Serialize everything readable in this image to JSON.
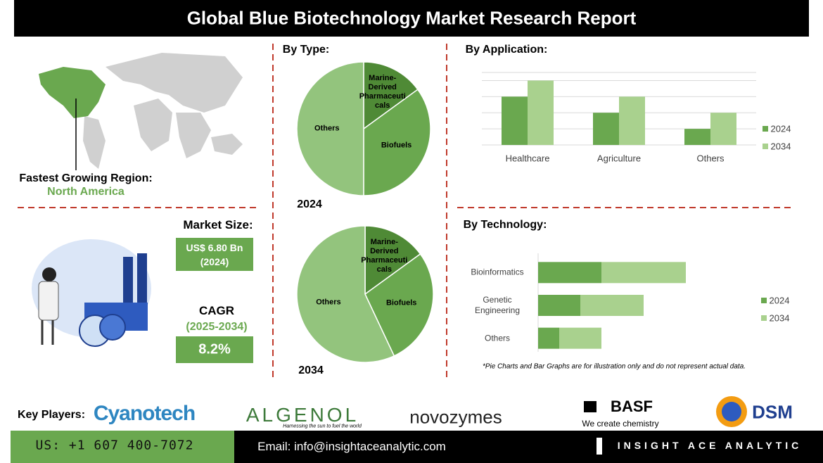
{
  "header": {
    "title": "Global Blue Biotechnology Market Research Report"
  },
  "region": {
    "label": "Fastest Growing Region:",
    "value": "North America"
  },
  "market_size": {
    "label": "Market Size:",
    "value": "US$ 6.80 Bn",
    "year": "(2024)"
  },
  "cagr": {
    "label": "CAGR",
    "period": "(2025-2034)",
    "value": "8.2%"
  },
  "chart_data": [
    {
      "type": "pie",
      "title": "By Type:",
      "label": "2024",
      "categories": [
        "Marine-Derived Pharmaceuticals",
        "Biofuels",
        "Others"
      ],
      "values": [
        15,
        35,
        50
      ],
      "colors": [
        "#4f8a36",
        "#6aa84f",
        "#93c47d"
      ]
    },
    {
      "type": "pie",
      "label": "2034",
      "categories": [
        "Marine-Derived Pharmaceuticals",
        "Biofuels",
        "Others"
      ],
      "values": [
        15,
        28,
        57
      ],
      "colors": [
        "#4f8a36",
        "#6aa84f",
        "#93c47d"
      ]
    },
    {
      "type": "bar",
      "title": "By Application:",
      "categories": [
        "Healthcare",
        "Agriculture",
        "Others"
      ],
      "series": [
        {
          "name": "2024",
          "color": "#6aa84f",
          "values": [
            3,
            2,
            1
          ]
        },
        {
          "name": "2034",
          "color": "#a9d18e",
          "values": [
            4,
            3,
            2
          ]
        }
      ],
      "ylim": [
        0,
        4.5
      ],
      "yticks": [
        0,
        1,
        2,
        3,
        4
      ],
      "grid": true,
      "legend": "right"
    },
    {
      "type": "stacked-bar",
      "orientation": "horizontal",
      "title": "By Technology:",
      "categories": [
        "Bioinformatics",
        "Genetic Engineering",
        "Others"
      ],
      "series": [
        {
          "name": "2024",
          "color": "#6aa84f",
          "values": [
            3,
            2,
            1
          ]
        },
        {
          "name": "2034",
          "color": "#a9d18e",
          "values": [
            4,
            3,
            2
          ]
        }
      ],
      "xlim": [
        0,
        8
      ],
      "legend": "right"
    }
  ],
  "note": "*Pie Charts and Bar Graphs are for illustration only and do not represent actual data.",
  "key_players": {
    "label": "Key Players:",
    "companies": [
      {
        "name": "Cyanotech"
      },
      {
        "name": "ALGENOL",
        "tagline": "Harnessing the sun to fuel the world"
      },
      {
        "name": "novozymes"
      },
      {
        "name": "BASF",
        "tagline": "We create chemistry"
      },
      {
        "name": "DSM"
      }
    ]
  },
  "footer": {
    "phone": "US: +1 607 400-7072",
    "email": "Email: info@insightaceanalytic.com",
    "brand": "INSIGHT ACE ANALYTIC"
  }
}
